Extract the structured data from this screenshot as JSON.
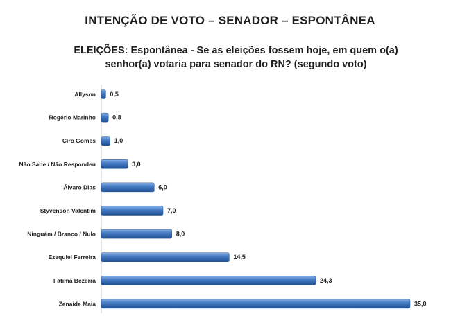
{
  "header": {
    "title": "INTENÇÃO DE VOTO – SENADOR – ESPONTÂNEA",
    "subtitle_line1": "ELEIÇÕES: Espontânea - Se as eleições fossem hoje, em quem o(a)",
    "subtitle_line2": "senhor(a) votaria para senador do RN? (segundo voto)"
  },
  "chart_data": {
    "type": "bar",
    "orientation": "horizontal",
    "title": "INTENÇÃO DE VOTO – SENADOR – ESPONTÂNEA",
    "subtitle": "ELEIÇÕES: Espontânea - Se as eleições fossem hoje, em quem o(a) senhor(a) votaria para senador do RN? (segundo voto)",
    "xlabel": "",
    "ylabel": "",
    "categories": [
      "Allyson",
      "Rogério Marinho",
      "Ciro Gomes",
      "Não Sabe / Não Respondeu",
      "Álvaro Dias",
      "Styvenson Valentim",
      "Ninguém / Branco / Nulo",
      "Ezequiel Ferreira",
      "Fátima Bezerra",
      "Zenaide Maia"
    ],
    "values": [
      0.5,
      0.8,
      1.0,
      3.0,
      6.0,
      7.0,
      8.0,
      14.5,
      24.3,
      35.0
    ],
    "value_labels": [
      "0,5",
      "0,8",
      "1,0",
      "3,0",
      "6,0",
      "7,0",
      "8,0",
      "14,5",
      "24,3",
      "35,0"
    ],
    "xlim": [
      0,
      35
    ],
    "grid": false,
    "legend": "none",
    "bar_color": "#3d72b8"
  }
}
